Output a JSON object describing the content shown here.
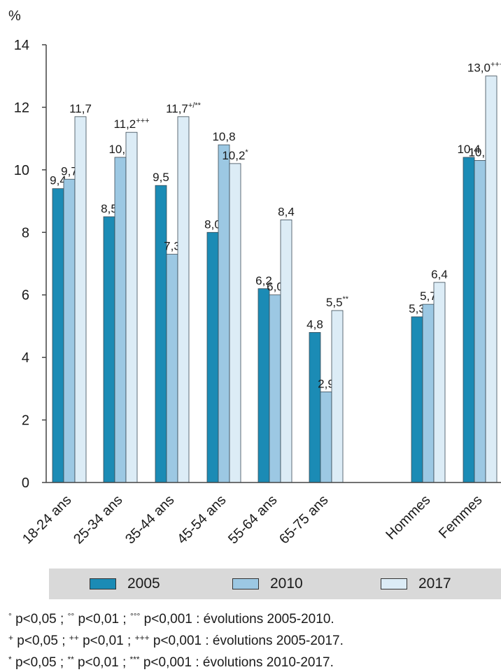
{
  "chart_data": {
    "type": "bar",
    "ylabel": "%",
    "ylim": [
      0,
      14
    ],
    "yticks": [
      0,
      2,
      4,
      6,
      8,
      10,
      12,
      14
    ],
    "categories": [
      "18-24 ans",
      "25-34 ans",
      "35-44 ans",
      "45-54 ans",
      "55-64 ans",
      "65-75 ans",
      "Hommes",
      "Femmes"
    ],
    "series": [
      {
        "name": "2005",
        "color": "#1b8bb5",
        "values": [
          9.4,
          8.5,
          9.5,
          8.0,
          6.2,
          4.8,
          5.3,
          10.4
        ],
        "labels": [
          "9,4",
          "8,5",
          "9,5",
          "8,0",
          "6,2",
          "4,8",
          "5,3",
          "10,4"
        ],
        "sups": [
          "",
          "",
          "",
          "",
          "",
          "",
          "",
          ""
        ]
      },
      {
        "name": "2010",
        "color": "#9cc8e3",
        "values": [
          9.7,
          10.4,
          7.3,
          10.8,
          6.0,
          2.9,
          5.7,
          10.3
        ],
        "labels": [
          "9,7",
          "10,4",
          "7,3",
          "10,8",
          "6,0",
          "2,9",
          "5,7",
          "10,3"
        ],
        "sups": [
          "",
          "",
          "",
          "",
          "",
          "",
          "",
          ""
        ]
      },
      {
        "name": "2017",
        "color": "#dcecf6",
        "values": [
          11.7,
          11.2,
          11.7,
          10.2,
          8.4,
          5.5,
          6.4,
          13.0
        ],
        "labels": [
          "11,7",
          "11,2",
          "11,7",
          "10,2",
          "8,4",
          "5,5",
          "6,4",
          "13,0"
        ],
        "sups": [
          "",
          "+++",
          "+/**",
          "*",
          "",
          "**",
          "",
          "+++/***"
        ]
      }
    ],
    "grid": false,
    "legend": "bottom"
  },
  "notes": [
    {
      "s1": "°",
      "t1": " p<0,05 ; ",
      "s2": "°°",
      "t2": " p<0,01 ; ",
      "s3": "°°°",
      "t3": " p<0,001 : évolutions 2005-2010."
    },
    {
      "s1": "+",
      "t1": " p<0,05 ; ",
      "s2": "++",
      "t2": " p<0,01 ; ",
      "s3": "+++",
      "t3": " p<0,001 : évolutions 2005-2017."
    },
    {
      "s1": "*",
      "t1": " p<0,05 ; ",
      "s2": "**",
      "t2": " p<0,01 ; ",
      "s3": "***",
      "t3": " p<0,001 : évolutions 2010-2017."
    }
  ]
}
